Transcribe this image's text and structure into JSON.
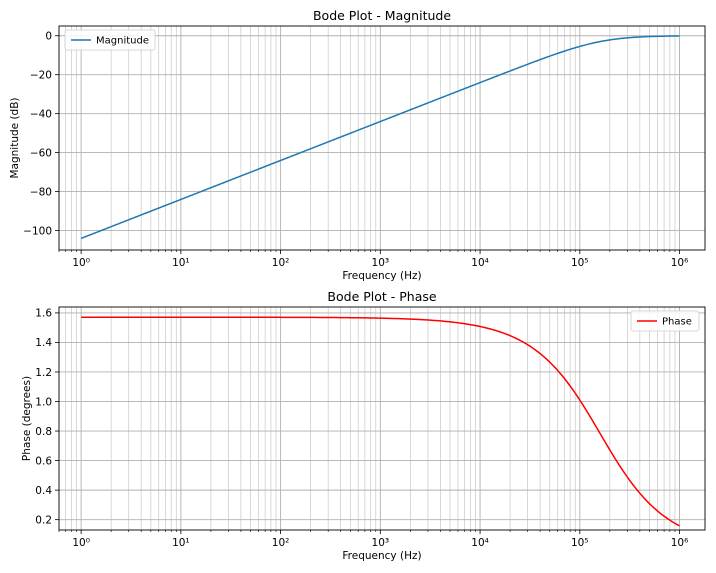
{
  "chart_data": [
    {
      "type": "line",
      "title": "Bode Plot - Magnitude",
      "xlabel": "Frequency (Hz)",
      "ylabel": "Magnitude (dB)",
      "xscale": "log",
      "xlim": [
        0.6,
        1800000
      ],
      "ylim": [
        -110,
        5
      ],
      "x_ticks": [
        1,
        10,
        100,
        1000,
        10000,
        100000,
        1000000
      ],
      "y_ticks": [
        0,
        -20,
        -40,
        -60,
        -80,
        -100
      ],
      "y_tick_labels": [
        "0",
        "−20",
        "−40",
        "−60",
        "−80",
        "−100"
      ],
      "grid": "both (major and minor)",
      "legend": "upper left",
      "series": [
        {
          "name": "Magnitude",
          "color": "#1f77b4",
          "model": "first-order high-pass, fc ≈ 159155 Hz",
          "x": [
            1,
            10,
            100,
            1000,
            10000,
            100000,
            1000000
          ],
          "y": [
            -104.0,
            -84.0,
            -64.0,
            -44.0,
            -24.0,
            -5.5,
            -0.17
          ]
        }
      ]
    },
    {
      "type": "line",
      "title": "Bode Plot - Phase",
      "xlabel": "Frequency (Hz)",
      "ylabel": "Phase (degrees)",
      "xscale": "log",
      "xlim": [
        0.6,
        1800000
      ],
      "ylim": [
        0.13,
        1.64
      ],
      "x_ticks": [
        1,
        10,
        100,
        1000,
        10000,
        100000,
        1000000
      ],
      "y_ticks": [
        0.2,
        0.4,
        0.6,
        0.8,
        1.0,
        1.2,
        1.4,
        1.6
      ],
      "y_tick_labels": [
        "0.2",
        "0.4",
        "0.6",
        "0.8",
        "1.0",
        "1.2",
        "1.4",
        "1.6"
      ],
      "grid": "both (major and minor)",
      "legend": "upper right",
      "series": [
        {
          "name": "Phase",
          "color": "#ff0000",
          "model": "atan(fc / f), fc ≈ 159155 Hz",
          "x": [
            1,
            10,
            100,
            1000,
            10000,
            100000,
            1000000
          ],
          "y": [
            1.571,
            1.571,
            1.57,
            1.564,
            1.508,
            1.01,
            0.158
          ]
        }
      ]
    }
  ]
}
